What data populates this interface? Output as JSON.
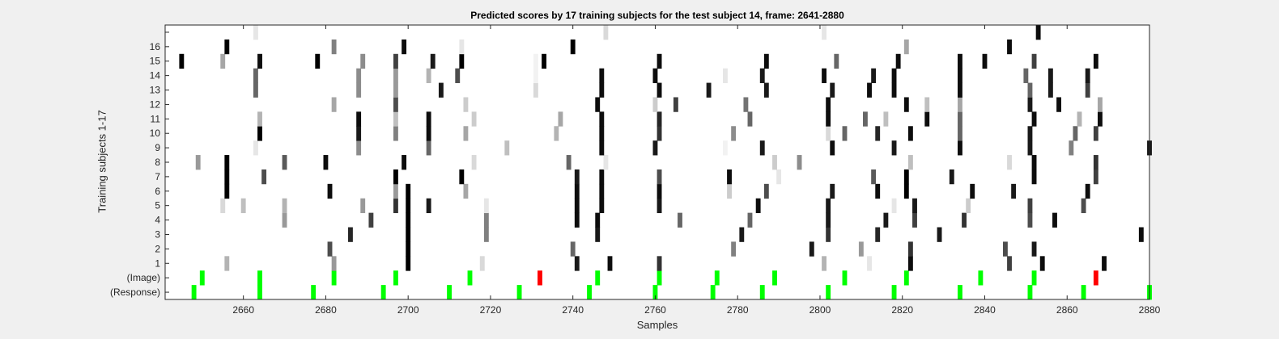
{
  "chart_data": {
    "type": "heatmap",
    "title": "Predicted scores by 17 training subjects for the test subject 14, frame: 2641-2880",
    "xlabel": "Samples",
    "ylabel": "Training subjects 1-17",
    "xlim": [
      2641,
      2880
    ],
    "xticks": [
      2660,
      2680,
      2700,
      2720,
      2740,
      2760,
      2780,
      2800,
      2820,
      2840,
      2860,
      2880
    ],
    "row_labels": [
      "(Response)",
      "(Image)",
      "1",
      "2",
      "3",
      "4",
      "5",
      "6",
      "7",
      "8",
      "9",
      "10",
      "11",
      "12",
      "13",
      "14",
      "15",
      "16",
      ""
    ],
    "grid": false,
    "colors": {
      "marker": "#00ff00",
      "miss": "#ff0000",
      "background": "#ffffff",
      "figure": "#f0f0f0"
    },
    "marker_rows": {
      "response": {
        "green": [
          2648,
          2664,
          2677,
          2694,
          2710,
          2727,
          2744,
          2760,
          2774,
          2786,
          2802,
          2818,
          2834,
          2851,
          2864,
          2880
        ],
        "red": []
      },
      "image": {
        "green": [
          2650,
          2664,
          2682,
          2697,
          2715,
          2746,
          2761,
          2775,
          2789,
          2806,
          2821,
          2839,
          2852
        ],
        "red": [
          2732,
          2867
        ]
      }
    },
    "score_rows": [
      {
        "subject": 1,
        "cells": [
          [
            2656,
            0.3
          ],
          [
            2682,
            0.4
          ],
          [
            2700,
            1.0
          ],
          [
            2718,
            0.15
          ],
          [
            2741,
            0.9
          ],
          [
            2749,
            0.95
          ],
          [
            2761,
            0.8
          ],
          [
            2801,
            0.3
          ],
          [
            2812,
            0.1
          ],
          [
            2822,
            0.95
          ],
          [
            2846,
            0.75
          ],
          [
            2854,
            0.95
          ],
          [
            2869,
            0.95
          ]
        ]
      },
      {
        "subject": 2,
        "cells": [
          [
            2681,
            0.7
          ],
          [
            2700,
            1.0
          ],
          [
            2740,
            0.6
          ],
          [
            2779,
            0.5
          ],
          [
            2798,
            0.9
          ],
          [
            2810,
            0.4
          ],
          [
            2822,
            0.8
          ],
          [
            2845,
            0.7
          ],
          [
            2852,
            0.9
          ]
        ]
      },
      {
        "subject": 3,
        "cells": [
          [
            2686,
            0.85
          ],
          [
            2700,
            1.0
          ],
          [
            2719,
            0.5
          ],
          [
            2746,
            0.9
          ],
          [
            2781,
            0.9
          ],
          [
            2802,
            0.8
          ],
          [
            2814,
            0.85
          ],
          [
            2829,
            0.9
          ],
          [
            2878,
            0.95
          ]
        ]
      },
      {
        "subject": 4,
        "cells": [
          [
            2670,
            0.4
          ],
          [
            2691,
            0.75
          ],
          [
            2700,
            1.0
          ],
          [
            2719,
            0.5
          ],
          [
            2741,
            0.95
          ],
          [
            2746,
            0.95
          ],
          [
            2766,
            0.6
          ],
          [
            2783,
            0.6
          ],
          [
            2802,
            0.9
          ],
          [
            2816,
            0.9
          ],
          [
            2823,
            0.75
          ],
          [
            2835,
            0.8
          ],
          [
            2851,
            0.7
          ],
          [
            2857,
            0.95
          ]
        ]
      },
      {
        "subject": 5,
        "cells": [
          [
            2655,
            0.15
          ],
          [
            2660,
            0.25
          ],
          [
            2670,
            0.3
          ],
          [
            2689,
            0.4
          ],
          [
            2697,
            0.8
          ],
          [
            2700,
            1.0
          ],
          [
            2705,
            0.9
          ],
          [
            2719,
            0.1
          ],
          [
            2741,
            0.95
          ],
          [
            2747,
            0.95
          ],
          [
            2761,
            0.9
          ],
          [
            2785,
            0.95
          ],
          [
            2802,
            0.9
          ],
          [
            2818,
            0.1
          ],
          [
            2823,
            0.9
          ],
          [
            2836,
            0.2
          ],
          [
            2851,
            0.75
          ],
          [
            2864,
            0.7
          ]
        ]
      },
      {
        "subject": 6,
        "cells": [
          [
            2656,
            1.0
          ],
          [
            2681,
            0.95
          ],
          [
            2697,
            0.4
          ],
          [
            2700,
            1.0
          ],
          [
            2714,
            0.35
          ],
          [
            2741,
            0.95
          ],
          [
            2747,
            0.95
          ],
          [
            2761,
            0.95
          ],
          [
            2778,
            0.2
          ],
          [
            2787,
            0.7
          ],
          [
            2803,
            0.9
          ],
          [
            2814,
            0.95
          ],
          [
            2821,
            1.0
          ],
          [
            2837,
            0.95
          ],
          [
            2847,
            0.9
          ],
          [
            2865,
            0.95
          ]
        ]
      },
      {
        "subject": 7,
        "cells": [
          [
            2656,
            1.0
          ],
          [
            2665,
            0.7
          ],
          [
            2697,
            1.0
          ],
          [
            2713,
            1.0
          ],
          [
            2741,
            0.9
          ],
          [
            2747,
            0.95
          ],
          [
            2761,
            0.7
          ],
          [
            2778,
            0.95
          ],
          [
            2790,
            0.1
          ],
          [
            2813,
            0.65
          ],
          [
            2821,
            1.0
          ],
          [
            2832,
            0.9
          ],
          [
            2852,
            0.95
          ],
          [
            2867,
            0.75
          ]
        ]
      },
      {
        "subject": 8,
        "cells": [
          [
            2649,
            0.4
          ],
          [
            2656,
            1.0
          ],
          [
            2670,
            0.65
          ],
          [
            2680,
            0.95
          ],
          [
            2699,
            0.95
          ],
          [
            2716,
            0.15
          ],
          [
            2739,
            0.6
          ],
          [
            2748,
            0.1
          ],
          [
            2789,
            0.2
          ],
          [
            2795,
            0.45
          ],
          [
            2822,
            0.25
          ],
          [
            2846,
            0.15
          ],
          [
            2852,
            0.95
          ],
          [
            2867,
            0.8
          ]
        ]
      },
      {
        "subject": 9,
        "cells": [
          [
            2663,
            0.1
          ],
          [
            2688,
            0.45
          ],
          [
            2705,
            0.6
          ],
          [
            2724,
            0.25
          ],
          [
            2747,
            0.95
          ],
          [
            2760,
            0.9
          ],
          [
            2777,
            0.05
          ],
          [
            2786,
            0.9
          ],
          [
            2803,
            0.95
          ],
          [
            2818,
            0.9
          ],
          [
            2834,
            0.95
          ],
          [
            2851,
            0.9
          ],
          [
            2861,
            0.5
          ],
          [
            2880,
            0.9
          ]
        ]
      },
      {
        "subject": 10,
        "cells": [
          [
            2664,
            1.0
          ],
          [
            2688,
            0.9
          ],
          [
            2697,
            0.5
          ],
          [
            2705,
            0.95
          ],
          [
            2714,
            0.35
          ],
          [
            2736,
            0.3
          ],
          [
            2747,
            0.95
          ],
          [
            2761,
            0.8
          ],
          [
            2779,
            0.45
          ],
          [
            2802,
            0.15
          ],
          [
            2806,
            0.6
          ],
          [
            2814,
            0.85
          ],
          [
            2822,
            0.95
          ],
          [
            2834,
            0.6
          ],
          [
            2851,
            0.9
          ],
          [
            2862,
            0.6
          ],
          [
            2867,
            0.75
          ]
        ]
      },
      {
        "subject": 11,
        "cells": [
          [
            2664,
            0.3
          ],
          [
            2688,
            0.95
          ],
          [
            2697,
            0.25
          ],
          [
            2705,
            0.95
          ],
          [
            2716,
            0.2
          ],
          [
            2737,
            0.35
          ],
          [
            2747,
            0.95
          ],
          [
            2761,
            0.85
          ],
          [
            2783,
            0.6
          ],
          [
            2802,
            0.95
          ],
          [
            2811,
            0.6
          ],
          [
            2816,
            0.25
          ],
          [
            2826,
            0.95
          ],
          [
            2834,
            0.6
          ],
          [
            2852,
            0.95
          ],
          [
            2863,
            0.3
          ],
          [
            2868,
            0.95
          ]
        ]
      },
      {
        "subject": 12,
        "cells": [
          [
            2682,
            0.35
          ],
          [
            2697,
            0.7
          ],
          [
            2714,
            0.2
          ],
          [
            2746,
            0.95
          ],
          [
            2760,
            0.2
          ],
          [
            2765,
            0.75
          ],
          [
            2782,
            0.55
          ],
          [
            2802,
            0.95
          ],
          [
            2821,
            0.95
          ],
          [
            2826,
            0.25
          ],
          [
            2834,
            0.35
          ],
          [
            2851,
            0.9
          ],
          [
            2858,
            0.95
          ],
          [
            2868,
            0.35
          ]
        ]
      },
      {
        "subject": 13,
        "cells": [
          [
            2663,
            0.6
          ],
          [
            2688,
            0.45
          ],
          [
            2697,
            0.4
          ],
          [
            2708,
            0.9
          ],
          [
            2731,
            0.15
          ],
          [
            2747,
            0.95
          ],
          [
            2761,
            0.95
          ],
          [
            2773,
            0.9
          ],
          [
            2787,
            0.9
          ],
          [
            2803,
            0.9
          ],
          [
            2812,
            0.95
          ],
          [
            2818,
            0.95
          ],
          [
            2834,
            0.95
          ],
          [
            2851,
            0.6
          ],
          [
            2856,
            0.9
          ],
          [
            2865,
            0.75
          ]
        ]
      },
      {
        "subject": 14,
        "cells": [
          [
            2663,
            0.6
          ],
          [
            2688,
            0.45
          ],
          [
            2697,
            0.4
          ],
          [
            2705,
            0.3
          ],
          [
            2712,
            0.7
          ],
          [
            2731,
            0.05
          ],
          [
            2747,
            0.95
          ],
          [
            2760,
            0.95
          ],
          [
            2777,
            0.1
          ],
          [
            2786,
            0.9
          ],
          [
            2801,
            0.95
          ],
          [
            2813,
            0.9
          ],
          [
            2818,
            0.95
          ],
          [
            2834,
            0.95
          ],
          [
            2850,
            0.6
          ],
          [
            2856,
            0.9
          ],
          [
            2865,
            0.9
          ]
        ]
      },
      {
        "subject": 15,
        "cells": [
          [
            2645,
            1.0
          ],
          [
            2655,
            0.35
          ],
          [
            2664,
            0.95
          ],
          [
            2678,
            1.0
          ],
          [
            2689,
            0.45
          ],
          [
            2697,
            0.75
          ],
          [
            2706,
            0.9
          ],
          [
            2713,
            1.0
          ],
          [
            2731,
            0.05
          ],
          [
            2733,
            1.0
          ],
          [
            2761,
            0.95
          ],
          [
            2787,
            0.95
          ],
          [
            2804,
            0.6
          ],
          [
            2819,
            0.95
          ],
          [
            2834,
            0.95
          ],
          [
            2840,
            0.95
          ],
          [
            2852,
            0.75
          ],
          [
            2867,
            0.95
          ]
        ]
      },
      {
        "subject": 16,
        "cells": [
          [
            2656,
            1.0
          ],
          [
            2682,
            0.5
          ],
          [
            2699,
            0.95
          ],
          [
            2713,
            0.1
          ],
          [
            2740,
            1.0
          ],
          [
            2821,
            0.35
          ],
          [
            2846,
            0.95
          ]
        ]
      },
      {
        "subject": 17,
        "cells": [
          [
            2663,
            0.1
          ],
          [
            2748,
            0.15
          ],
          [
            2801,
            0.1
          ],
          [
            2853,
            0.95
          ]
        ]
      }
    ]
  }
}
